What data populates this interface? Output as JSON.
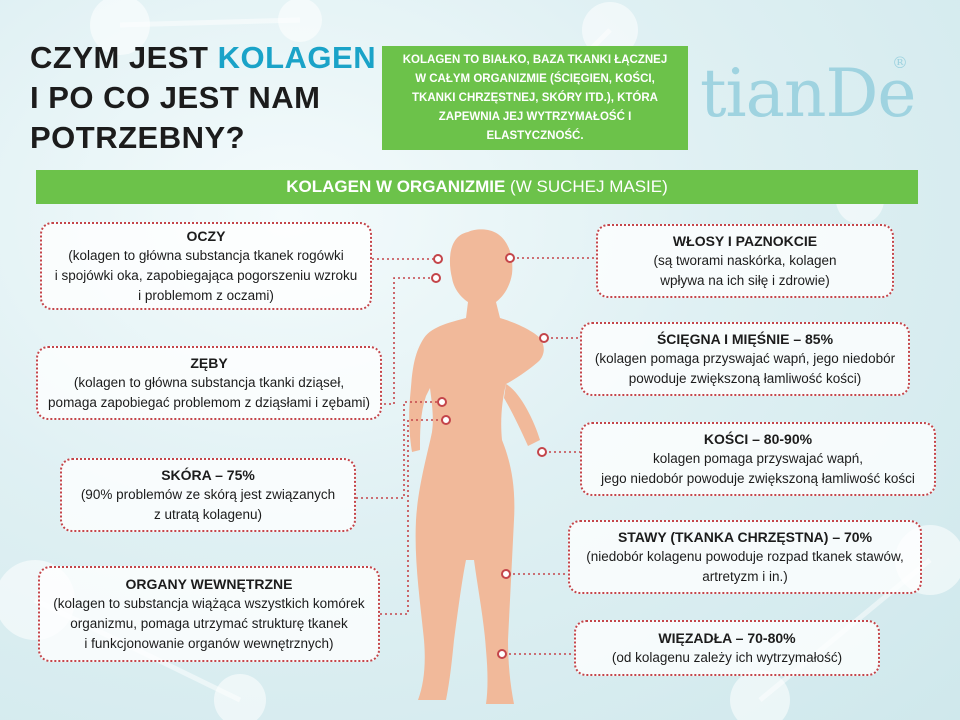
{
  "title": {
    "line1_pre": "CZYM JEST ",
    "line1_highlight": "KOLAGEN",
    "line2": "I PO CO JEST NAM",
    "line3": "POTRZEBNY?"
  },
  "definition": "KOLAGEN TO BIAŁKO, BAZA TKANKI ŁĄCZNEJ W CAŁYM ORGANIZMIE (ŚCIĘGIEN, KOŚCI, TKANKI CHRZĘSTNEJ, SKÓRY ITD.), KTÓRA ZAPEWNIA JEJ WYTRZYMAŁOŚĆ I ELASTYCZNOŚĆ.",
  "logo": {
    "text": "tianDe",
    "reg": "®"
  },
  "banner": {
    "bold": "KOLAGEN W ORGANIZMIE",
    "normal": " (W SUCHEJ MASIE)"
  },
  "colors": {
    "green": "#6cc24a",
    "accent": "#1aa3c8",
    "dots": "#c4454a",
    "body": "#f1b99a"
  },
  "left_items": [
    {
      "title": "OCZY",
      "lines": [
        "(kolagen to główna substancja tkanek rogówki",
        "i spojówki oka, zapobiegająca pogorszeniu wzroku",
        "i problemom z oczami)"
      ]
    },
    {
      "title": "ZĘBY",
      "lines": [
        "(kolagen to główna substancja tkanki dziąseł,",
        "pomaga zapobiegać problemom z dziąsłami i zębami)"
      ]
    },
    {
      "title": "SKÓRA – 75%",
      "lines": [
        "(90% problemów ze skórą jest związanych",
        "z utratą kolagenu)"
      ]
    },
    {
      "title": "ORGANY WEWNĘTRZNE",
      "lines": [
        "(kolagen to substancja wiążąca wszystkich komórek",
        "organizmu, pomaga utrzymać strukturę tkanek",
        "i funkcjonowanie organów wewnętrznych)"
      ]
    }
  ],
  "right_items": [
    {
      "title": "WŁOSY I PAZNOKCIE",
      "lines": [
        "(są tworami naskórka, kolagen",
        "wpływa na ich siłę i zdrowie)"
      ]
    },
    {
      "title": "ŚCIĘGNA I MIĘŚNIE – 85%",
      "lines": [
        "(kolagen pomaga przyswajać wapń, jego niedobór",
        "powoduje zwiększoną łamliwość kości)"
      ]
    },
    {
      "title": "KOŚCI – 80-90%",
      "lines": [
        "kolagen pomaga przyswajać wapń,",
        "jego niedobór powoduje zwiększoną łamliwość kości"
      ]
    },
    {
      "title": "STAWY (TKANKA CHRZĘSTNA) – 70%",
      "lines": [
        "(niedobór kolagenu powoduje rozpad tkanek stawów,",
        "artretyzm i in.)"
      ]
    },
    {
      "title": "WIĘZADŁA – 70-80%",
      "lines": [
        "(od kolagenu zależy ich wytrzymałość)"
      ]
    }
  ]
}
